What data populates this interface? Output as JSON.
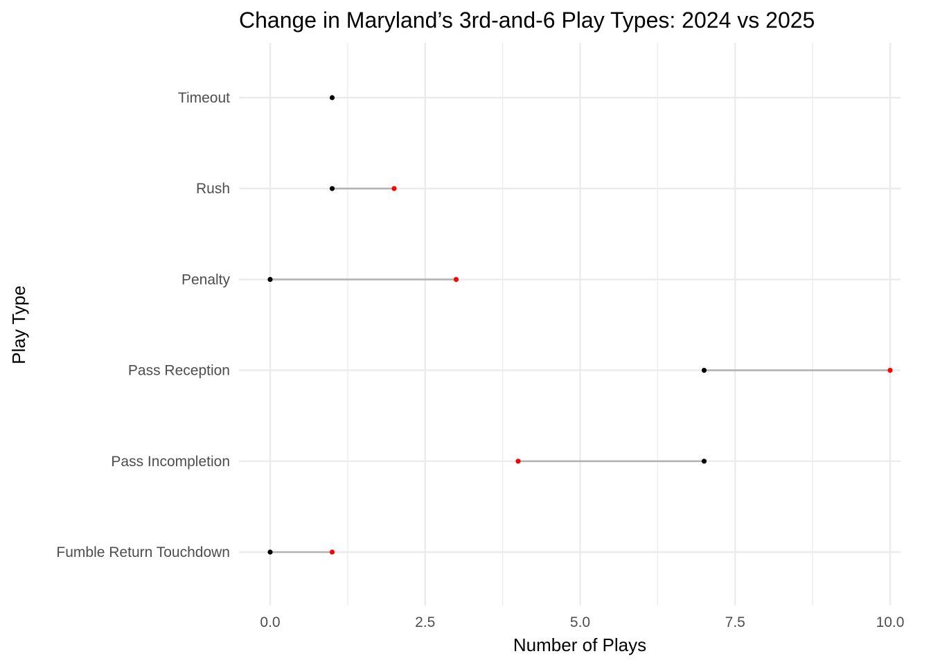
{
  "chart_data": {
    "type": "dumbbell",
    "title": "Change in Maryland’s 3rd-and-6 Play Types: 2024 vs 2025",
    "xlabel": "Number of Plays",
    "ylabel": "Play Type",
    "xlim": [
      -0.25,
      10.1
    ],
    "x_ticks": [
      0.0,
      2.5,
      5.0,
      7.5,
      10.0
    ],
    "x_tick_labels": [
      "0.0",
      "2.5",
      "5.0",
      "7.5",
      "10.0"
    ],
    "grid": true,
    "categories": [
      "Timeout",
      "Rush",
      "Penalty",
      "Pass Reception",
      "Pass Incompletion",
      "Fumble Return Touchdown"
    ],
    "series": [
      {
        "key": "black",
        "color": "#000000",
        "values": [
          1,
          1,
          0,
          7,
          7,
          0
        ]
      },
      {
        "key": "red",
        "color": "#ff0000",
        "values": [
          null,
          2,
          3,
          10,
          4,
          1
        ]
      }
    ],
    "segment_color": "#b3b3b3",
    "grid_color": "#ebebeb"
  }
}
